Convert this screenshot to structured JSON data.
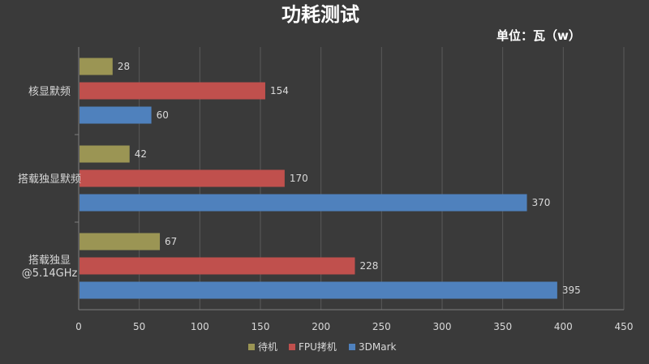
{
  "chart_data": {
    "type": "bar",
    "orientation": "horizontal",
    "title": "功耗测试",
    "unit_label": "单位：瓦（w）",
    "categories": [
      [
        "核显默频"
      ],
      [
        "搭载独显默频"
      ],
      [
        "搭载独显",
        "@5.14GHz"
      ]
    ],
    "series": [
      {
        "name": "待机",
        "color": "#9b9554",
        "values": [
          28,
          42,
          67
        ]
      },
      {
        "name": "FPU拷机",
        "color": "#c0504d",
        "values": [
          154,
          170,
          228
        ]
      },
      {
        "name": "3DMark",
        "color": "#4f81bd",
        "values": [
          60,
          370,
          395
        ]
      }
    ],
    "xlim": [
      0,
      450
    ],
    "xticks": [
      0,
      50,
      100,
      150,
      200,
      250,
      300,
      350,
      400,
      450
    ],
    "grid": "vertical",
    "legend": "bottom"
  }
}
